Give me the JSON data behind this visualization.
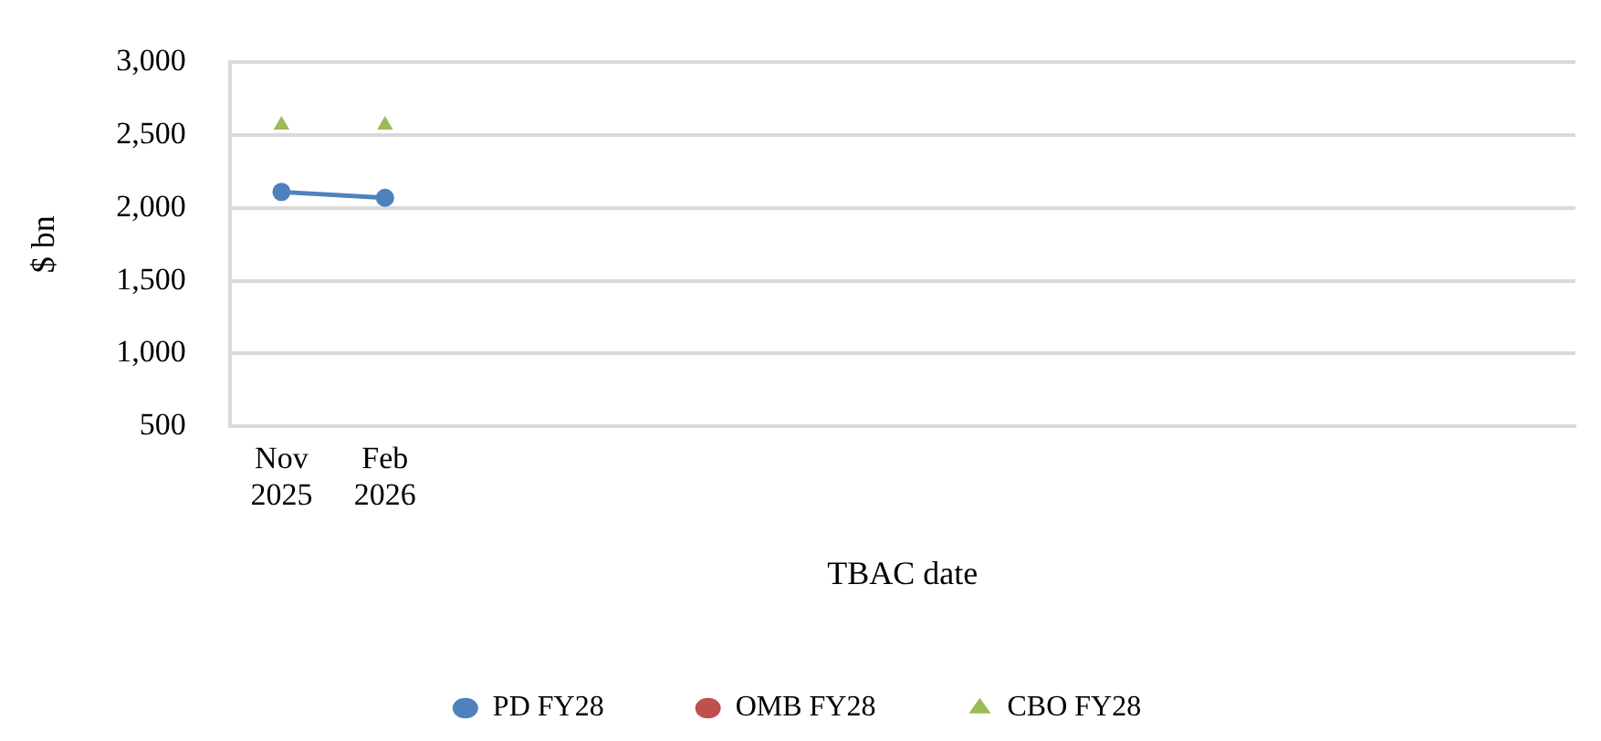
{
  "chart_data": {
    "type": "line",
    "xlabel": "TBAC date",
    "ylabel": "$ bn",
    "categories": [
      "Nov 2025",
      "Feb 2026",
      null,
      null,
      null,
      null,
      null,
      null,
      null,
      null,
      null,
      null,
      null
    ],
    "series": [
      {
        "name": "PD FY28",
        "type": "line",
        "color": "#4f81bd",
        "marker": "circle",
        "values": [
          2110,
          2070,
          null,
          null,
          null,
          null,
          null,
          null,
          null,
          null,
          null,
          null,
          null
        ]
      },
      {
        "name": "OMB FY28",
        "type": "scatter",
        "color": "#c0504d",
        "marker": "circle",
        "values": [
          null,
          null,
          null,
          null,
          null,
          null,
          null,
          null,
          null,
          null,
          null,
          null,
          null
        ]
      },
      {
        "name": "CBO FY28",
        "type": "scatter",
        "color": "#9bbb59",
        "marker": "triangle",
        "values": [
          2570,
          2570,
          null,
          null,
          null,
          null,
          null,
          null,
          null,
          null,
          null,
          null,
          null
        ]
      }
    ],
    "ylim": [
      500,
      3000
    ],
    "yticks": [
      500,
      {
        "value": 1000,
        "label": "1,000"
      },
      {
        "value": 1500,
        "label": "1,500"
      },
      {
        "value": 2000,
        "label": "2,000"
      },
      {
        "value": 2500,
        "label": "2,500"
      },
      {
        "value": 3000,
        "label": "3,000"
      }
    ],
    "grid": "y",
    "legend": "bottom"
  }
}
